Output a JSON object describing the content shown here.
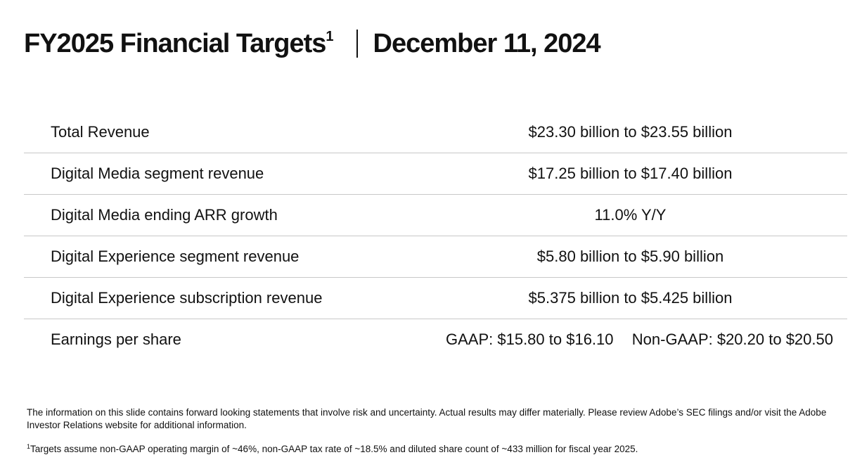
{
  "header": {
    "title": "FY2025 Financial Targets",
    "title_footnote_marker": "1",
    "date": "December 11, 2024"
  },
  "targets": [
    {
      "label": "Total Revenue",
      "value": "$23.30 billion to $23.55 billion"
    },
    {
      "label": "Digital Media segment revenue",
      "value": "$17.25 billion to $17.40 billion"
    },
    {
      "label": "Digital Media ending ARR growth",
      "value": "11.0% Y/Y"
    },
    {
      "label": "Digital Experience segment revenue",
      "value": "$5.80 billion to $5.90 billion"
    },
    {
      "label": "Digital Experience subscription revenue",
      "value": "$5.375 billion to $5.425 billion"
    }
  ],
  "eps": {
    "label": "Earnings per share",
    "gaap": "GAAP: $15.80 to $16.10",
    "non_gaap": "Non-GAAP: $20.20 to $20.50"
  },
  "disclaimer": "The information on this slide contains forward looking statements that involve risk and uncertainty. Actual results may differ materially. Please review Adobe’s SEC filings and/or visit the Adobe Investor Relations website for additional information.",
  "footnote": {
    "marker": "1",
    "text": "Targets assume non-GAAP operating margin of ~46%, non-GAAP tax rate of ~18.5% and diluted share count of ~433 million for fiscal year 2025."
  }
}
